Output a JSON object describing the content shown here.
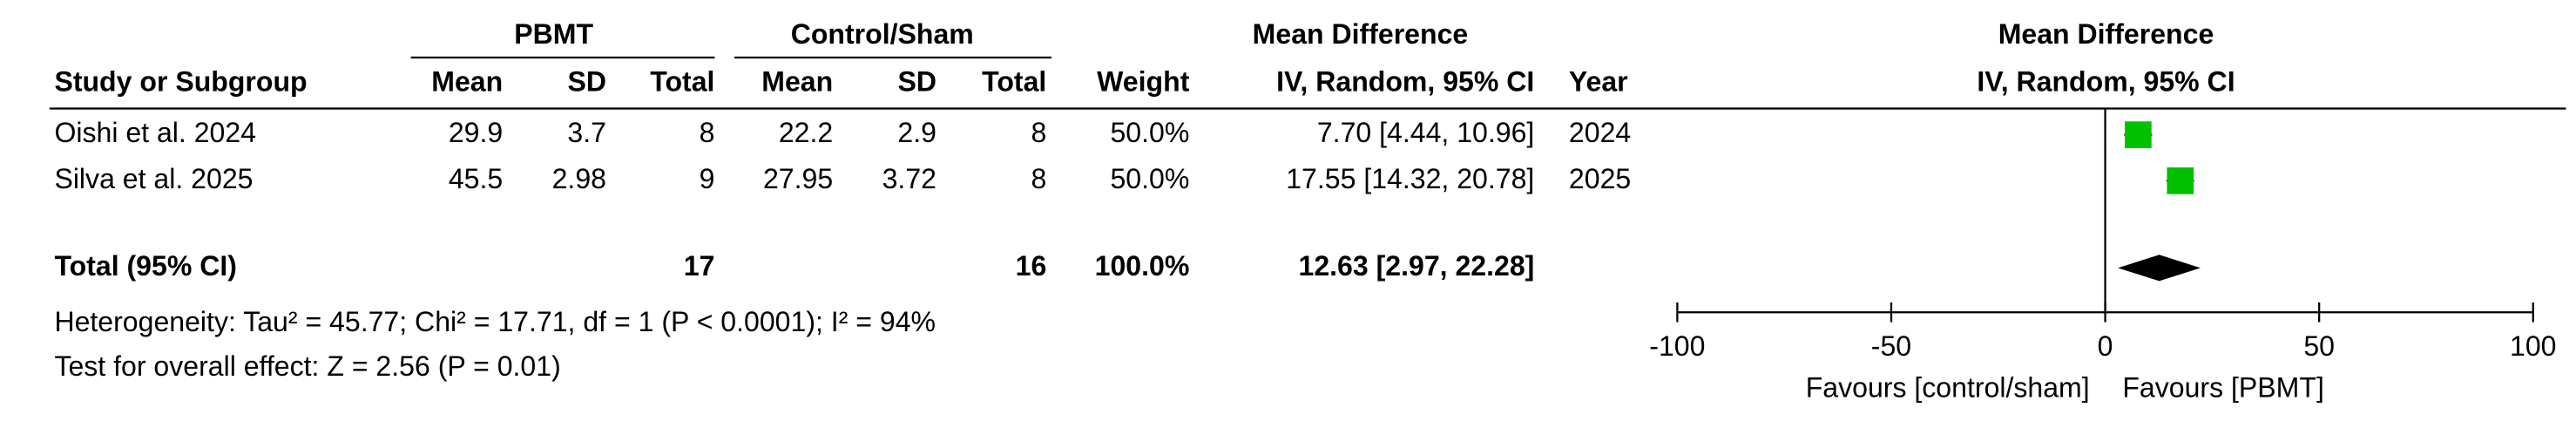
{
  "header": {
    "group1": "PBMT",
    "group2": "Control/Sham",
    "effect": "Mean Difference",
    "plot_title": "Mean Difference",
    "plot_subtitle": "IV, Random, 95% CI",
    "columns": [
      "Study or Subgroup",
      "Mean",
      "SD",
      "Total",
      "Mean",
      "SD",
      "Total",
      "Weight",
      "IV, Random, 95% CI",
      "Year"
    ]
  },
  "studies": [
    {
      "name": "Oishi et al. 2024",
      "pbmt_mean": 29.9,
      "pbmt_sd": 3.7,
      "pbmt_total": 8,
      "ctrl_mean": 22.2,
      "ctrl_sd": 2.9,
      "ctrl_total": 8,
      "weight": {
        "value": 50,
        "label": "50.0%"
      },
      "md": {
        "value": 7.7,
        "low": 4.44,
        "high": 10.96,
        "label": "7.70 [4.44, 10.96]"
      },
      "year": 2024
    },
    {
      "name": "Silva et al. 2025",
      "pbmt_mean": 45.5,
      "pbmt_sd": 2.98,
      "pbmt_total": 9,
      "ctrl_mean": 27.95,
      "ctrl_sd": 3.72,
      "ctrl_total": 8,
      "weight": {
        "value": 50,
        "label": "50.0%"
      },
      "md": {
        "value": 17.55,
        "low": 14.32,
        "high": 20.78,
        "label": "17.55 [14.32, 20.78]"
      },
      "year": 2025
    }
  ],
  "total": {
    "name": "Total (95% CI)",
    "pbmt_total": 17,
    "ctrl_total": 16,
    "weight": {
      "value": 100,
      "label": "100.0%"
    },
    "md": {
      "value": 12.63,
      "low": 2.97,
      "high": 22.28,
      "label": "12.63 [2.97, 22.28]"
    }
  },
  "heterogeneity": "Heterogeneity: Tau² = 45.77; Chi² = 17.71, df = 1 (P < 0.0001); I² = 94%",
  "overall_effect": "Test for overall effect: Z = 2.56 (P = 0.01)",
  "plot": {
    "xlim": [
      -100,
      100
    ],
    "xticks": [
      -100,
      -50,
      0,
      50,
      100
    ],
    "favours_left": "Favours [control/sham]",
    "favours_right": "Favours [PBMT]",
    "square_color": "#00c000"
  }
}
